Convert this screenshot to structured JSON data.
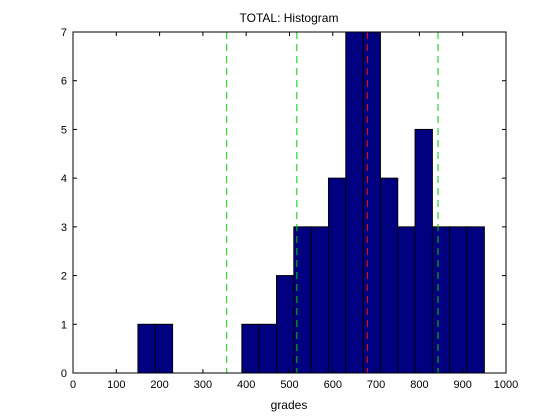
{
  "chart_data": {
    "type": "bar",
    "title": "TOTAL: Histogram",
    "xlabel": "grades",
    "ylabel": "",
    "xlim": [
      0,
      1000
    ],
    "ylim": [
      0,
      7
    ],
    "xticks": [
      0,
      100,
      200,
      300,
      400,
      500,
      600,
      700,
      800,
      900,
      1000
    ],
    "yticks": [
      0,
      1,
      2,
      3,
      4,
      5,
      6,
      7
    ],
    "bin_width": 40,
    "bins": [
      {
        "x0": 150,
        "x1": 190,
        "count": 1
      },
      {
        "x0": 190,
        "x1": 230,
        "count": 1
      },
      {
        "x0": 390,
        "x1": 430,
        "count": 1
      },
      {
        "x0": 430,
        "x1": 470,
        "count": 1
      },
      {
        "x0": 470,
        "x1": 510,
        "count": 2
      },
      {
        "x0": 510,
        "x1": 550,
        "count": 3
      },
      {
        "x0": 550,
        "x1": 590,
        "count": 3
      },
      {
        "x0": 590,
        "x1": 630,
        "count": 4
      },
      {
        "x0": 630,
        "x1": 670,
        "count": 7
      },
      {
        "x0": 670,
        "x1": 710,
        "count": 7
      },
      {
        "x0": 710,
        "x1": 750,
        "count": 4
      },
      {
        "x0": 750,
        "x1": 790,
        "count": 3
      },
      {
        "x0": 790,
        "x1": 830,
        "count": 5
      },
      {
        "x0": 830,
        "x1": 870,
        "count": 3
      },
      {
        "x0": 870,
        "x1": 910,
        "count": 3
      },
      {
        "x0": 910,
        "x1": 950,
        "count": 3
      }
    ],
    "reference_lines": [
      {
        "x": 355,
        "color": "#00cc00",
        "style": "dashed"
      },
      {
        "x": 517,
        "color": "#00cc00",
        "style": "dashed"
      },
      {
        "x": 680,
        "color": "#ff0000",
        "style": "dashed"
      },
      {
        "x": 843,
        "color": "#00cc00",
        "style": "dashed"
      }
    ],
    "bar_color": "#000080",
    "bar_edge_color": "#000000",
    "grid": false
  }
}
